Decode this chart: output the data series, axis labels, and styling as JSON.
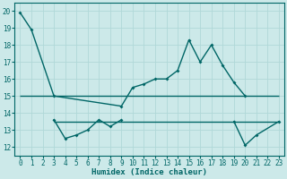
{
  "xlabel": "Humidex (Indice chaleur)",
  "xlim": [
    -0.5,
    23.5
  ],
  "ylim": [
    11.5,
    20.5
  ],
  "yticks": [
    12,
    13,
    14,
    15,
    16,
    17,
    18,
    19,
    20
  ],
  "xticks": [
    0,
    1,
    2,
    3,
    4,
    5,
    6,
    7,
    8,
    9,
    10,
    11,
    12,
    13,
    14,
    15,
    16,
    17,
    18,
    19,
    20,
    21,
    22,
    23
  ],
  "bg_color": "#cce9e9",
  "line_color": "#006666",
  "grid_color": "#b0d8d8",
  "series1_x": [
    0,
    1,
    3,
    9,
    10,
    11,
    12,
    13,
    14,
    15,
    16,
    17,
    18,
    19,
    20
  ],
  "series1_y": [
    19.9,
    18.9,
    15.0,
    14.4,
    15.5,
    15.7,
    16.0,
    16.0,
    16.5,
    18.3,
    17.0,
    18.0,
    16.8,
    15.8,
    15.0
  ],
  "series3_x": [
    3,
    4,
    5,
    6,
    7,
    8,
    9,
    19,
    20,
    21,
    23
  ],
  "series3_y": [
    13.6,
    12.5,
    12.7,
    13.0,
    13.6,
    13.2,
    13.6,
    13.5,
    12.1,
    12.7,
    13.5
  ],
  "h_line1_y": 15.0,
  "h_line1_x_start": 0,
  "h_line1_x_end": 23,
  "h_line2_y": 13.5,
  "h_line2_x_start": 3,
  "h_line2_x_end": 23
}
